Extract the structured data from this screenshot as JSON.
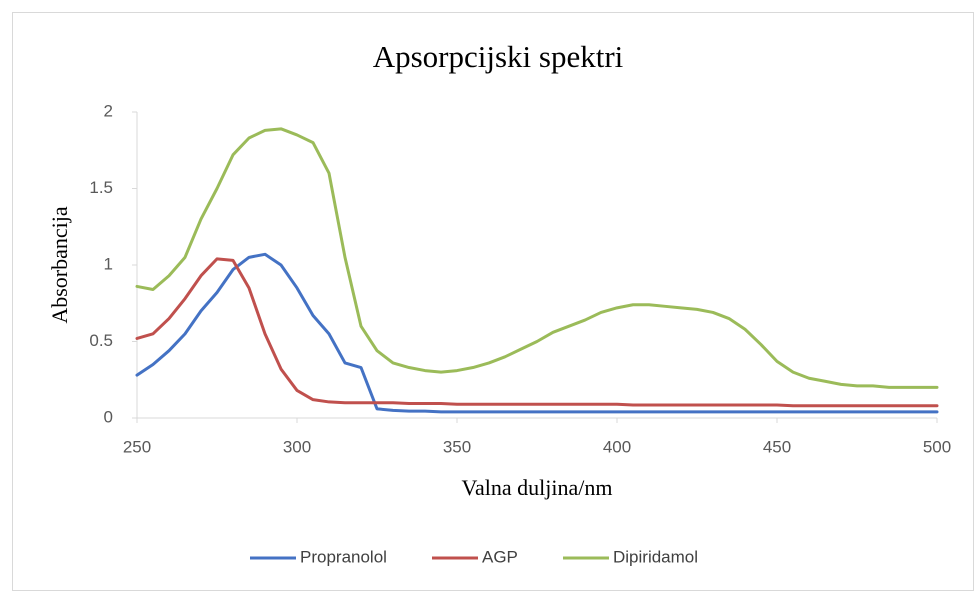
{
  "chart_data": {
    "type": "line",
    "title": "Apsorpcijski  spektri",
    "x_label": "Valna duljina/nm",
    "y_label": "Absorbancija",
    "x": [
      250,
      255,
      260,
      265,
      270,
      275,
      280,
      285,
      290,
      295,
      300,
      305,
      310,
      315,
      320,
      325,
      330,
      335,
      340,
      345,
      350,
      355,
      360,
      365,
      370,
      375,
      380,
      385,
      390,
      395,
      400,
      405,
      410,
      415,
      420,
      425,
      430,
      435,
      440,
      445,
      450,
      455,
      460,
      465,
      470,
      475,
      480,
      485,
      490,
      495,
      500
    ],
    "xlim": [
      250,
      500
    ],
    "xticks": [
      250,
      300,
      350,
      400,
      450,
      500
    ],
    "ylim": [
      0,
      2
    ],
    "yticks": [
      0,
      0.5,
      1,
      1.5,
      2
    ],
    "grid": false,
    "legend": "bottom",
    "series": [
      {
        "name": "Propranolol",
        "color": "#4472c4",
        "values": [
          0.28,
          0.35,
          0.44,
          0.55,
          0.7,
          0.82,
          0.97,
          1.05,
          1.07,
          1.0,
          0.85,
          0.67,
          0.55,
          0.36,
          0.33,
          0.06,
          0.05,
          0.045,
          0.045,
          0.04,
          0.04,
          0.04,
          0.04,
          0.04,
          0.04,
          0.04,
          0.04,
          0.04,
          0.04,
          0.04,
          0.04,
          0.04,
          0.04,
          0.04,
          0.04,
          0.04,
          0.04,
          0.04,
          0.04,
          0.04,
          0.04,
          0.04,
          0.04,
          0.04,
          0.04,
          0.04,
          0.04,
          0.04,
          0.04,
          0.04,
          0.04
        ]
      },
      {
        "name": "AGP",
        "color": "#c0504d",
        "values": [
          0.52,
          0.55,
          0.65,
          0.78,
          0.93,
          1.04,
          1.03,
          0.85,
          0.55,
          0.32,
          0.18,
          0.12,
          0.105,
          0.1,
          0.1,
          0.1,
          0.1,
          0.095,
          0.095,
          0.095,
          0.09,
          0.09,
          0.09,
          0.09,
          0.09,
          0.09,
          0.09,
          0.09,
          0.09,
          0.09,
          0.09,
          0.085,
          0.085,
          0.085,
          0.085,
          0.085,
          0.085,
          0.085,
          0.085,
          0.085,
          0.085,
          0.08,
          0.08,
          0.08,
          0.08,
          0.08,
          0.08,
          0.08,
          0.08,
          0.08,
          0.08
        ]
      },
      {
        "name": "Dipiridamol",
        "color": "#9bbb59",
        "values": [
          0.86,
          0.84,
          0.93,
          1.05,
          1.3,
          1.5,
          1.72,
          1.83,
          1.88,
          1.89,
          1.85,
          1.8,
          1.6,
          1.05,
          0.6,
          0.44,
          0.36,
          0.33,
          0.31,
          0.3,
          0.31,
          0.33,
          0.36,
          0.4,
          0.45,
          0.5,
          0.56,
          0.6,
          0.64,
          0.69,
          0.72,
          0.74,
          0.74,
          0.73,
          0.72,
          0.71,
          0.69,
          0.65,
          0.58,
          0.48,
          0.37,
          0.3,
          0.26,
          0.24,
          0.22,
          0.21,
          0.21,
          0.2,
          0.2,
          0.2,
          0.2
        ]
      }
    ]
  }
}
